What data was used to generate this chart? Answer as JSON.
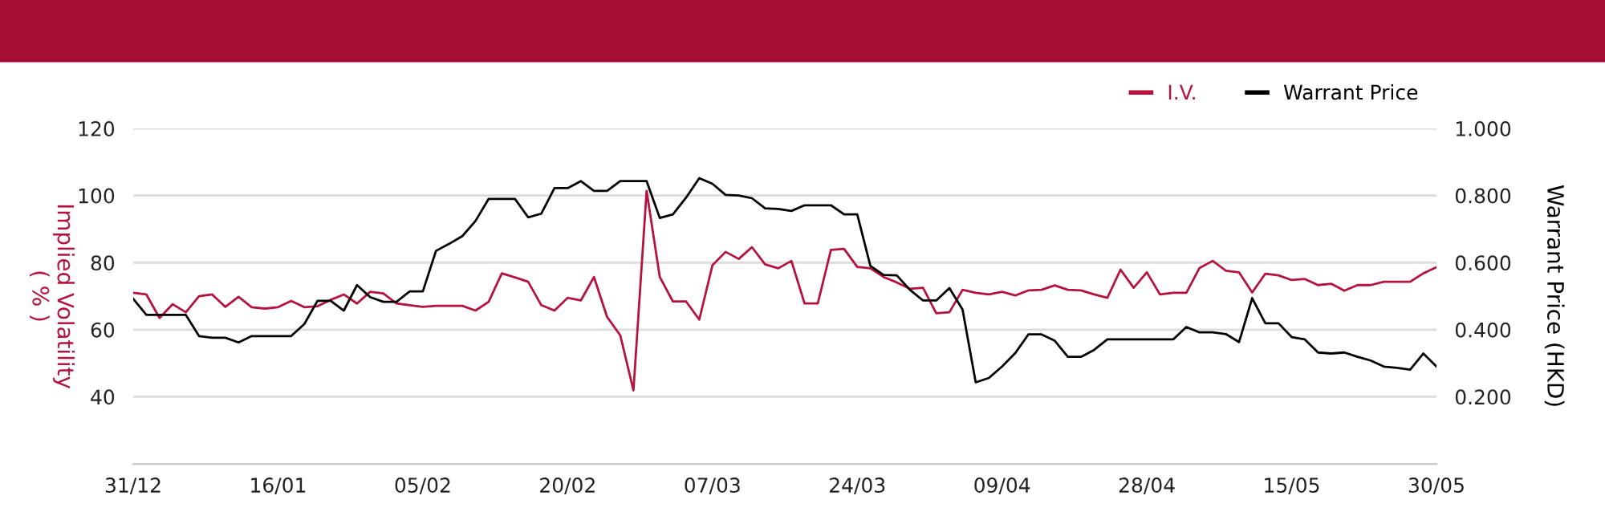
{
  "chart_data": {
    "type": "line",
    "ylabel": "Implied Volatility\n( % )",
    "y2label": "Warrant Price (HKD)",
    "categories": [
      "31/12",
      null,
      null,
      null,
      null,
      null,
      null,
      null,
      null,
      null,
      null,
      "16/01",
      null,
      null,
      null,
      null,
      null,
      null,
      null,
      null,
      null,
      null,
      "05/02",
      null,
      null,
      null,
      null,
      null,
      null,
      null,
      null,
      null,
      null,
      "20/02",
      null,
      null,
      null,
      null,
      null,
      null,
      null,
      null,
      null,
      null,
      "07/03",
      null,
      null,
      null,
      null,
      null,
      null,
      null,
      null,
      null,
      null,
      "24/03",
      null,
      null,
      null,
      null,
      null,
      null,
      null,
      null,
      null,
      null,
      "09/04",
      null,
      null,
      null,
      null,
      null,
      null,
      null,
      null,
      null,
      null,
      "28/04",
      null,
      null,
      null,
      null,
      null,
      null,
      null,
      null,
      null,
      null,
      "15/05",
      null,
      null,
      null,
      null,
      null,
      null,
      null,
      null,
      null,
      null,
      "30/05"
    ],
    "series": [
      {
        "name": "I.V.",
        "color": "#b5123d",
        "values": [
          71.0,
          70.5,
          63.5,
          67.6,
          65.2,
          70.0,
          70.5,
          66.8,
          69.8,
          66.7,
          66.3,
          66.7,
          68.6,
          66.7,
          67.0,
          68.9,
          70.5,
          67.8,
          71.3,
          70.8,
          67.8,
          67.3,
          66.8,
          67.1,
          67.1,
          67.1,
          65.7,
          68.3,
          76.8,
          75.6,
          74.3,
          67.3,
          65.7,
          69.5,
          68.7,
          75.7,
          63.8,
          58.3,
          41.9,
          101.4,
          75.7,
          68.4,
          68.4,
          63.0,
          79.2,
          83.2,
          81.1,
          84.6,
          79.5,
          78.3,
          80.5,
          67.8,
          67.8,
          83.8,
          84.1,
          78.7,
          78.3,
          75.7,
          74.1,
          72.2,
          72.5,
          64.9,
          65.2,
          71.9,
          71.0,
          70.5,
          71.3,
          70.2,
          71.7,
          71.9,
          73.2,
          71.9,
          71.7,
          70.5,
          69.5,
          77.9,
          72.5,
          77.1,
          70.5,
          71.0,
          71.0,
          78.4,
          80.5,
          77.6,
          77.1,
          71.1,
          76.7,
          76.2,
          74.8,
          75.1,
          73.3,
          73.7,
          71.6,
          73.3,
          73.3,
          74.3,
          74.3,
          74.3,
          76.8,
          78.6
        ]
      },
      {
        "name": "Warrant Price",
        "color": "#000000",
        "axis": "y2",
        "values": [
          0.492,
          0.444,
          0.444,
          0.444,
          0.444,
          0.381,
          0.376,
          0.376,
          0.362,
          0.381,
          0.381,
          0.381,
          0.381,
          0.417,
          0.486,
          0.486,
          0.457,
          0.533,
          0.497,
          0.483,
          0.483,
          0.514,
          0.514,
          0.635,
          0.656,
          0.679,
          0.724,
          0.79,
          0.79,
          0.79,
          0.735,
          0.746,
          0.822,
          0.822,
          0.843,
          0.814,
          0.814,
          0.843,
          0.843,
          0.843,
          0.733,
          0.744,
          0.794,
          0.852,
          0.835,
          0.802,
          0.8,
          0.792,
          0.762,
          0.76,
          0.754,
          0.771,
          0.771,
          0.771,
          0.744,
          0.744,
          0.59,
          0.563,
          0.562,
          0.519,
          0.487,
          0.487,
          0.524,
          0.46,
          0.243,
          0.256,
          0.29,
          0.33,
          0.386,
          0.386,
          0.367,
          0.319,
          0.319,
          0.34,
          0.371,
          0.371,
          0.371,
          0.371,
          0.371,
          0.371,
          0.408,
          0.392,
          0.392,
          0.387,
          0.363,
          0.494,
          0.419,
          0.419,
          0.378,
          0.371,
          0.332,
          0.329,
          0.332,
          0.319,
          0.308,
          0.29,
          0.286,
          0.281,
          0.329,
          0.29
        ]
      }
    ],
    "ylim": [
      20,
      120
    ],
    "yticks": [
      40,
      60,
      80,
      100,
      120
    ],
    "y2lim": [
      0,
      1
    ],
    "y2ticks": [
      {
        "value": 0.2,
        "label": "0.200"
      },
      {
        "value": 0.4,
        "label": "0.400"
      },
      {
        "value": 0.6,
        "label": "0.600"
      },
      {
        "value": 0.8,
        "label": "0.800"
      },
      {
        "value": 1.0,
        "label": "1.000"
      }
    ],
    "grid": "y",
    "legend": "top right",
    "marker": "none",
    "line_style": "solid"
  }
}
